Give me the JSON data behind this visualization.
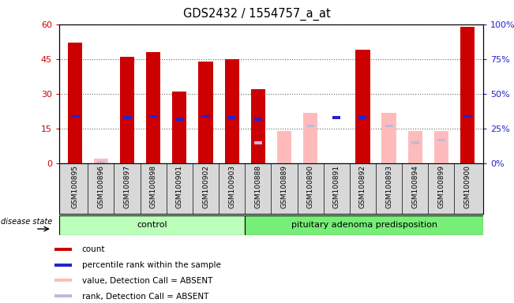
{
  "title": "GDS2432 / 1554757_a_at",
  "samples": [
    "GSM100895",
    "GSM100896",
    "GSM100897",
    "GSM100898",
    "GSM100901",
    "GSM100902",
    "GSM100903",
    "GSM100888",
    "GSM100889",
    "GSM100890",
    "GSM100891",
    "GSM100892",
    "GSM100893",
    "GSM100894",
    "GSM100899",
    "GSM100900"
  ],
  "count_values": [
    52,
    0,
    46,
    48,
    31,
    44,
    45,
    32,
    0,
    0,
    0,
    49,
    0,
    0,
    0,
    59
  ],
  "percentile_values": [
    34,
    0,
    33,
    34,
    32,
    34,
    33,
    32,
    0,
    0,
    33,
    33,
    0,
    0,
    0,
    34
  ],
  "absent_value_values": [
    0,
    2,
    0,
    0,
    0,
    0,
    0,
    0,
    14,
    22,
    0,
    0,
    22,
    14,
    14,
    0
  ],
  "absent_rank_values": [
    0,
    1,
    0,
    0,
    0,
    0,
    0,
    15,
    0,
    27,
    0,
    0,
    27,
    15,
    17,
    0
  ],
  "ylim_left": [
    0,
    60
  ],
  "ylim_right": [
    0,
    100
  ],
  "yticks_left": [
    0,
    15,
    30,
    45,
    60
  ],
  "yticks_right": [
    0,
    25,
    50,
    75,
    100
  ],
  "color_count": "#cc0000",
  "color_percentile": "#2222cc",
  "color_absent_value": "#ffbbbb",
  "color_absent_rank": "#bbbbdd",
  "group_control_color": "#bbffbb",
  "group_pituitary_color": "#77ee77",
  "background_plot": "#ffffff",
  "bar_width": 0.55
}
